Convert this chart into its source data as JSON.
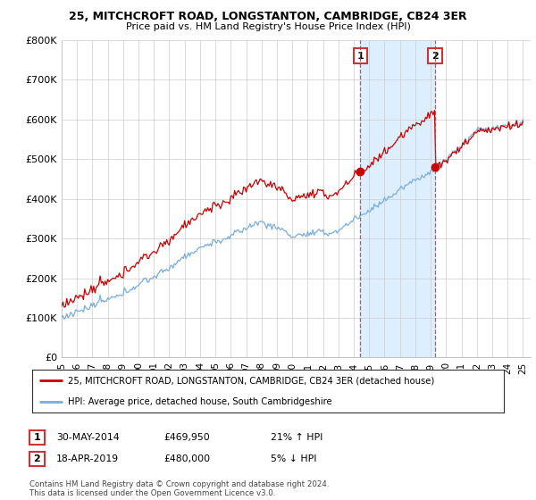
{
  "title1": "25, MITCHCROFT ROAD, LONGSTANTON, CAMBRIDGE, CB24 3ER",
  "title2": "Price paid vs. HM Land Registry's House Price Index (HPI)",
  "ylim": [
    0,
    800000
  ],
  "yticks": [
    0,
    100000,
    200000,
    300000,
    400000,
    500000,
    600000,
    700000,
    800000
  ],
  "ytick_labels": [
    "£0",
    "£100K",
    "£200K",
    "£300K",
    "£400K",
    "£500K",
    "£600K",
    "£700K",
    "£800K"
  ],
  "xlim_start": 1995.0,
  "xlim_end": 2025.5,
  "sale1_year": 2014.42,
  "sale1_price": 469950,
  "sale2_year": 2019.29,
  "sale2_price": 480000,
  "sale1_label": "1",
  "sale2_label": "2",
  "red_color": "#cc0000",
  "blue_color": "#7aaddc",
  "shade_color": "#ddeeff",
  "annotation_box_color": "#cc3333",
  "legend_line1": "25, MITCHCROFT ROAD, LONGSTANTON, CAMBRIDGE, CB24 3ER (detached house)",
  "legend_line2": "HPI: Average price, detached house, South Cambridgeshire",
  "table_row1": [
    "1",
    "30-MAY-2014",
    "£469,950",
    "21% ↑ HPI"
  ],
  "table_row2": [
    "2",
    "18-APR-2019",
    "£480,000",
    "5% ↓ HPI"
  ],
  "footer": "Contains HM Land Registry data © Crown copyright and database right 2024.\nThis data is licensed under the Open Government Licence v3.0.",
  "background_color": "#ffffff",
  "grid_color": "#cccccc"
}
